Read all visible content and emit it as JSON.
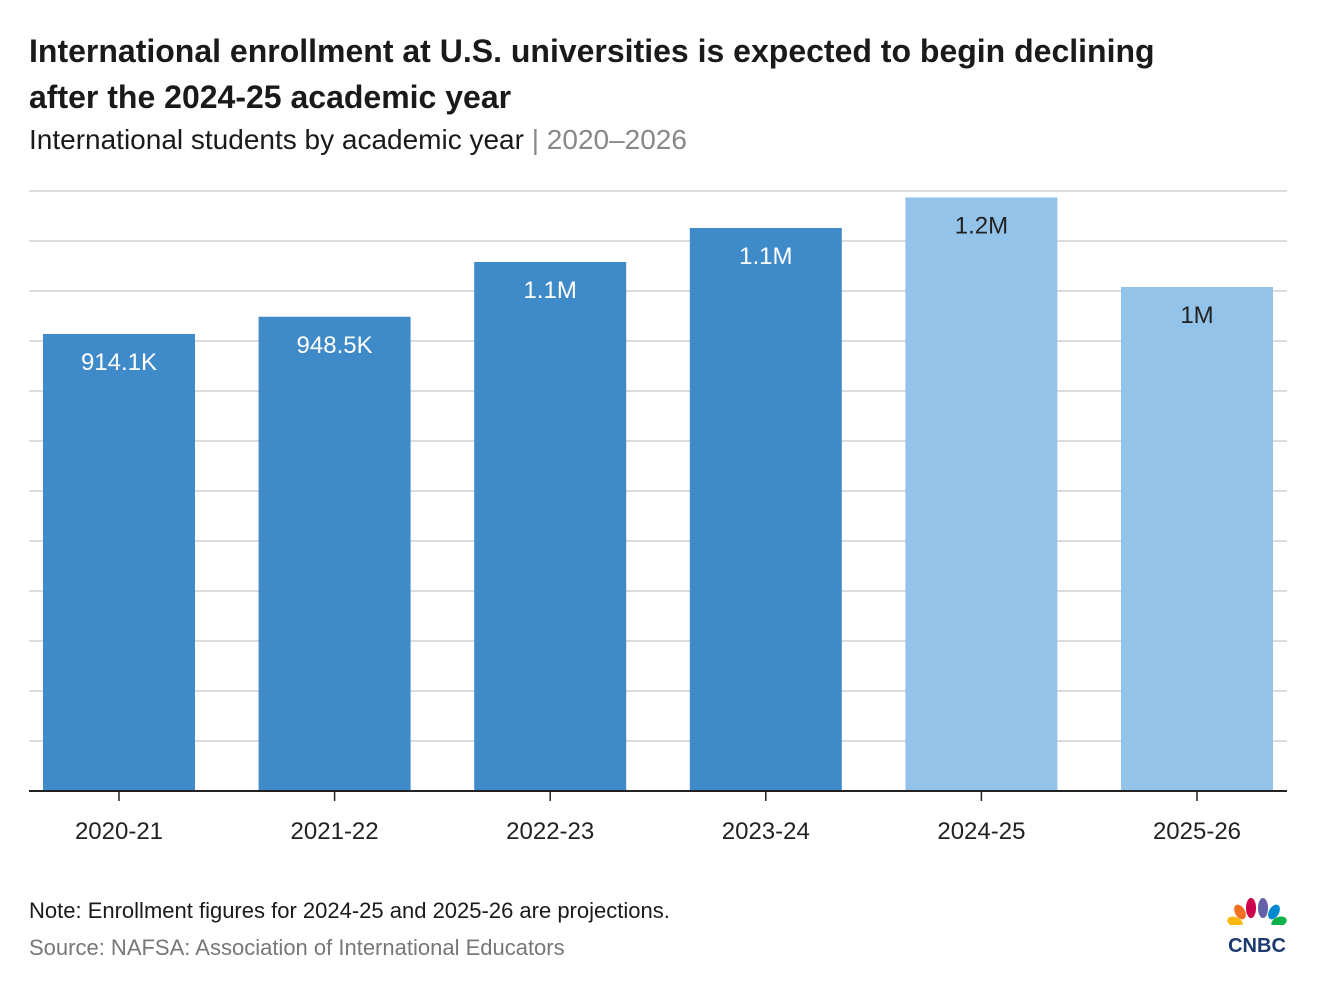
{
  "title": "International enrollment at U.S. universities is expected to begin declining after the 2024-25 academic year",
  "subtitle": "International students by academic year",
  "subtitle_sep": " | ",
  "subtitle_range": "2020–2026",
  "note": "Note: Enrollment figures for 2024-25 and 2025-26 are projections.",
  "source": "Source: NAFSA: Association of International Educators",
  "logo_text": "CNBC",
  "colors": {
    "actual": "#3f8ac9",
    "projected": "#93c3e8",
    "grid": "#d0d0d0",
    "axis": "#222222"
  },
  "chart_data": {
    "type": "bar",
    "categories": [
      "2020-21",
      "2021-22",
      "2022-23",
      "2023-24",
      "2024-25",
      "2025-26"
    ],
    "values": [
      914100,
      948500,
      1058000,
      1126000,
      1187000,
      1008000
    ],
    "labels": [
      "914.1K",
      "948.5K",
      "1.1M",
      "1.1M",
      "1.2M",
      "1M"
    ],
    "projected": [
      false,
      false,
      false,
      false,
      true,
      true
    ],
    "ylim": [
      0,
      1200000
    ],
    "ytick_step": 100000,
    "grid": true,
    "xlabel": "",
    "ylabel": ""
  }
}
